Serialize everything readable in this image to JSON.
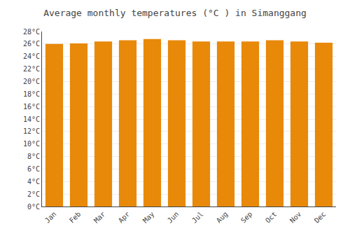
{
  "chart_data": {
    "type": "bar",
    "title": "Average monthly temperatures (°C ) in Simanggang",
    "categories": [
      "Jan",
      "Feb",
      "Mar",
      "Apr",
      "May",
      "Jun",
      "Jul",
      "Aug",
      "Sep",
      "Oct",
      "Nov",
      "Dec"
    ],
    "values": [
      26.0,
      26.1,
      26.4,
      26.6,
      26.8,
      26.6,
      26.4,
      26.4,
      26.4,
      26.6,
      26.4,
      26.2
    ],
    "color": "#E8890A",
    "ylim": [
      0,
      28
    ],
    "yticks": [
      {
        "value": 0,
        "label": "0°C"
      },
      {
        "value": 2,
        "label": "2°C"
      },
      {
        "value": 4,
        "label": "4°C"
      },
      {
        "value": 6,
        "label": "6°C"
      },
      {
        "value": 8,
        "label": "8°C"
      },
      {
        "value": 10,
        "label": "10°C"
      },
      {
        "value": 12,
        "label": "12°C"
      },
      {
        "value": 14,
        "label": "14°C"
      },
      {
        "value": 16,
        "label": "16°C"
      },
      {
        "value": 18,
        "label": "18°C"
      },
      {
        "value": 20,
        "label": "20°C"
      },
      {
        "value": 22,
        "label": "22°C"
      },
      {
        "value": 24,
        "label": "24°C"
      },
      {
        "value": 26,
        "label": "26°C"
      },
      {
        "value": 28,
        "label": "28°C"
      }
    ],
    "grid": true
  }
}
